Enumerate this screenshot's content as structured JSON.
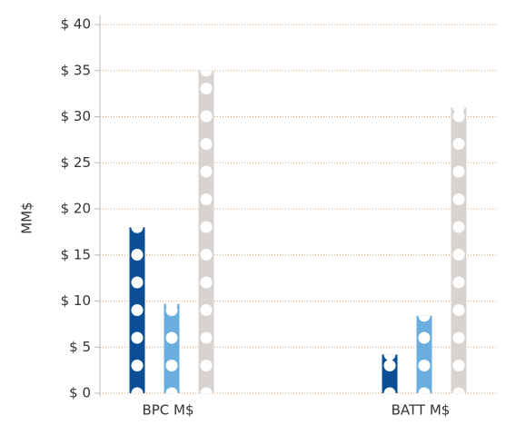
{
  "chart_data": {
    "type": "bar",
    "y_label": "MM$",
    "categories": [
      "BPC M$",
      "BATT M$"
    ],
    "series": [
      {
        "color": "#0a4f96",
        "values": [
          18,
          4.2
        ]
      },
      {
        "color": "#6aaee0",
        "values": [
          9.7,
          8.4
        ]
      },
      {
        "color": "#d9d3d0",
        "values": [
          35,
          31
        ]
      }
    ],
    "ylim": [
      0,
      40
    ],
    "yticks": [
      {
        "value": 0,
        "label": "$ 0"
      },
      {
        "value": 5,
        "label": "$ 5"
      },
      {
        "value": 10,
        "label": "$ 10"
      },
      {
        "value": 15,
        "label": "$ 15"
      },
      {
        "value": 20,
        "label": "$ 20"
      },
      {
        "value": 25,
        "label": "$ 25"
      },
      {
        "value": 30,
        "label": "$ 30"
      },
      {
        "value": 35,
        "label": "$ 35"
      },
      {
        "value": 40,
        "label": "$ 40"
      }
    ],
    "grid": true
  }
}
